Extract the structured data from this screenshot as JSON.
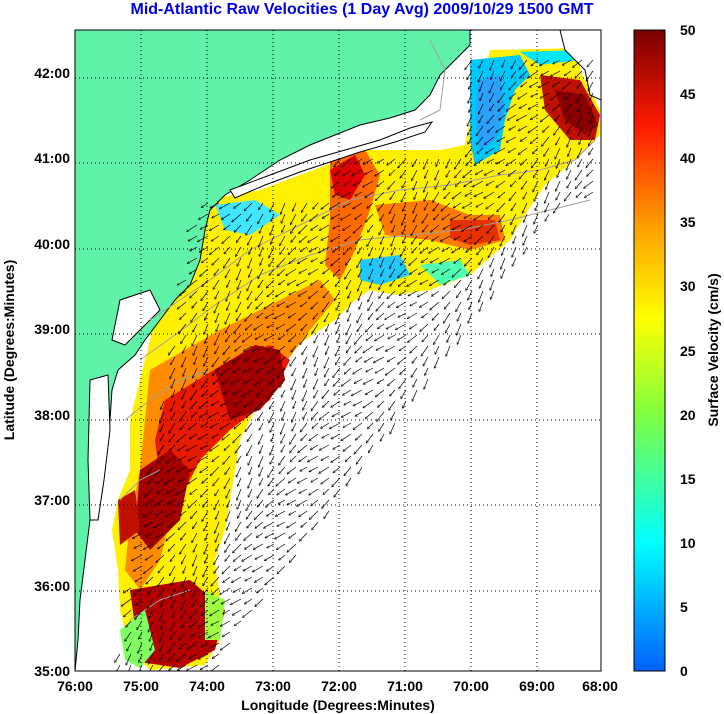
{
  "title": "Mid-Atlantic Raw Velocities (1 Day Avg) 2009/10/29 1500 GMT",
  "xlabel": "Longitude (Degrees:Minutes)",
  "ylabel": "Latitude (Degrees:Minutes)",
  "colorbar_label": "Surface Velocity (cm/s)",
  "x_ticks": [
    "76:00",
    "75:00",
    "74:00",
    "73:00",
    "72:00",
    "71:00",
    "70:00",
    "69:00",
    "68:00"
  ],
  "y_ticks": [
    "35:00",
    "36:00",
    "37:00",
    "38:00",
    "39:00",
    "40:00",
    "41:00",
    "42:00"
  ],
  "colorbar_ticks": [
    "0",
    "5",
    "10",
    "15",
    "20",
    "25",
    "30",
    "35",
    "40",
    "45",
    "50"
  ],
  "colors": {
    "land": "#5ff2a8",
    "title": "#0000e6",
    "grid": "#000000",
    "bathymetry": "#a0a0a0"
  },
  "map": {
    "lon_range": [
      -76,
      -68
    ],
    "lat_range": [
      35,
      42.5
    ],
    "colorbar_range": [
      0,
      50
    ],
    "colormap": "jet-like (blue-cyan-green-yellow-orange-red-darkred)",
    "grid": true
  }
}
